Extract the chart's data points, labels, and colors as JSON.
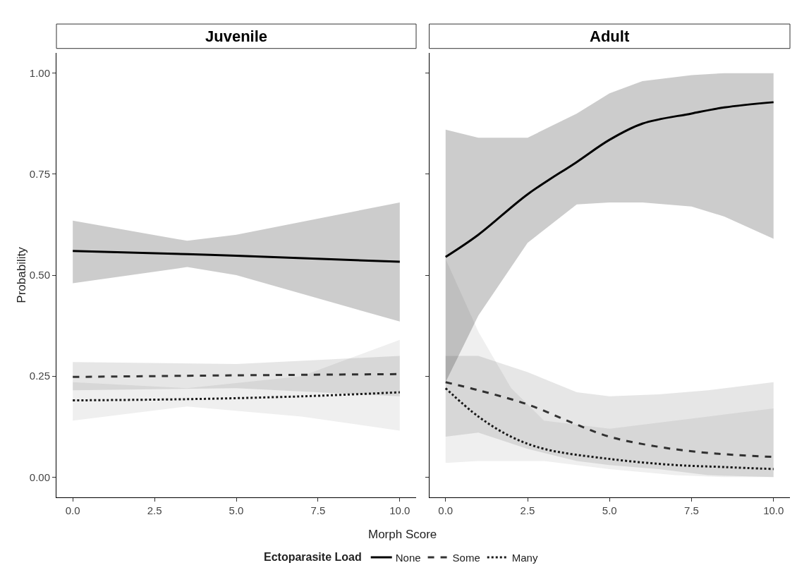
{
  "chart_data": [
    {
      "type": "line",
      "title": "Juvenile",
      "ylabel": "Probability",
      "xlim": [
        -0.5,
        10.5
      ],
      "ylim": [
        -0.05,
        1.05
      ],
      "xticks": [
        {
          "value": 0,
          "label": "0.0"
        },
        {
          "value": 2.5,
          "label": "2.5"
        },
        {
          "value": 5,
          "label": "5.0"
        },
        {
          "value": 7.5,
          "label": "7.5"
        },
        {
          "value": 10,
          "label": "10.0"
        }
      ],
      "yticks": [
        {
          "value": 0,
          "label": "0.00"
        },
        {
          "value": 0.25,
          "label": "0.25"
        },
        {
          "value": 0.5,
          "label": "0.50"
        },
        {
          "value": 0.75,
          "label": "0.75"
        },
        {
          "value": 1,
          "label": "1.00"
        }
      ],
      "grid": false,
      "legend": false,
      "series": [
        {
          "color": "#000000",
          "line_style": "solid",
          "x": [
            0,
            3.5,
            5,
            10
          ],
          "values": [
            0.56,
            0.552,
            0.548,
            0.533
          ],
          "lower": [
            0.48,
            0.52,
            0.5,
            0.385
          ],
          "upper": [
            0.635,
            0.585,
            0.6,
            0.68
          ]
        },
        {
          "color": "#333333",
          "line_style": "dashed",
          "x": [
            0,
            5,
            10
          ],
          "values": [
            0.248,
            0.252,
            0.255
          ],
          "lower": [
            0.215,
            0.22,
            0.2
          ],
          "upper": [
            0.285,
            0.28,
            0.3
          ]
        },
        {
          "color": "#1a1a1a",
          "line_style": "dotted",
          "x": [
            0,
            3.5,
            7,
            10
          ],
          "values": [
            0.19,
            0.193,
            0.2,
            0.21
          ],
          "lower": [
            0.14,
            0.175,
            0.15,
            0.115
          ],
          "upper": [
            0.235,
            0.22,
            0.25,
            0.34
          ]
        }
      ]
    },
    {
      "type": "line",
      "title": "Adult",
      "xlabel": "Morph Score",
      "legend_title": "Ectoparasite Load",
      "xlim": [
        -0.5,
        10.5
      ],
      "ylim": [
        -0.05,
        1.05
      ],
      "xticks": [
        {
          "value": 0,
          "label": "0.0"
        },
        {
          "value": 2.5,
          "label": "2.5"
        },
        {
          "value": 5,
          "label": "5.0"
        },
        {
          "value": 7.5,
          "label": "7.5"
        },
        {
          "value": 10,
          "label": "10.0"
        }
      ],
      "yticks": [
        0,
        0.25,
        0.5,
        0.75,
        1
      ],
      "tick_labels": "x",
      "grid": false,
      "legend": "bottom",
      "series": [
        {
          "name": "None",
          "color": "#000000",
          "line_style": "solid",
          "x": [
            0,
            1,
            2.5,
            4,
            5,
            6,
            7.5,
            8.5,
            10
          ],
          "values": [
            0.545,
            0.6,
            0.7,
            0.78,
            0.835,
            0.875,
            0.9,
            0.915,
            0.928
          ],
          "lower": [
            0.235,
            0.4,
            0.58,
            0.675,
            0.68,
            0.68,
            0.67,
            0.645,
            0.59
          ],
          "upper": [
            0.86,
            0.84,
            0.84,
            0.9,
            0.95,
            0.98,
            0.995,
            1,
            1
          ]
        },
        {
          "name": "Some",
          "color": "#333333",
          "line_style": "dashed",
          "x": [
            0,
            1,
            2.5,
            4,
            5,
            6.5,
            8,
            10
          ],
          "values": [
            0.235,
            0.215,
            0.18,
            0.13,
            0.1,
            0.075,
            0.06,
            0.05
          ],
          "lower": [
            0.1,
            0.11,
            0.07,
            0.04,
            0.03,
            0.02,
            0.005,
            0
          ],
          "upper": [
            0.3,
            0.3,
            0.26,
            0.21,
            0.2,
            0.205,
            0.215,
            0.235
          ]
        },
        {
          "name": "Many",
          "color": "#1a1a1a",
          "line_style": "dotted",
          "x": [
            0,
            1,
            2,
            3,
            5,
            7,
            8.5,
            10
          ],
          "values": [
            0.22,
            0.15,
            0.1,
            0.07,
            0.045,
            0.03,
            0.025,
            0.02
          ],
          "lower": [
            0.035,
            0.04,
            0.04,
            0.04,
            0.02,
            0.005,
            0,
            0
          ],
          "upper": [
            0.54,
            0.36,
            0.22,
            0.14,
            0.12,
            0.14,
            0.155,
            0.17
          ]
        }
      ]
    }
  ]
}
